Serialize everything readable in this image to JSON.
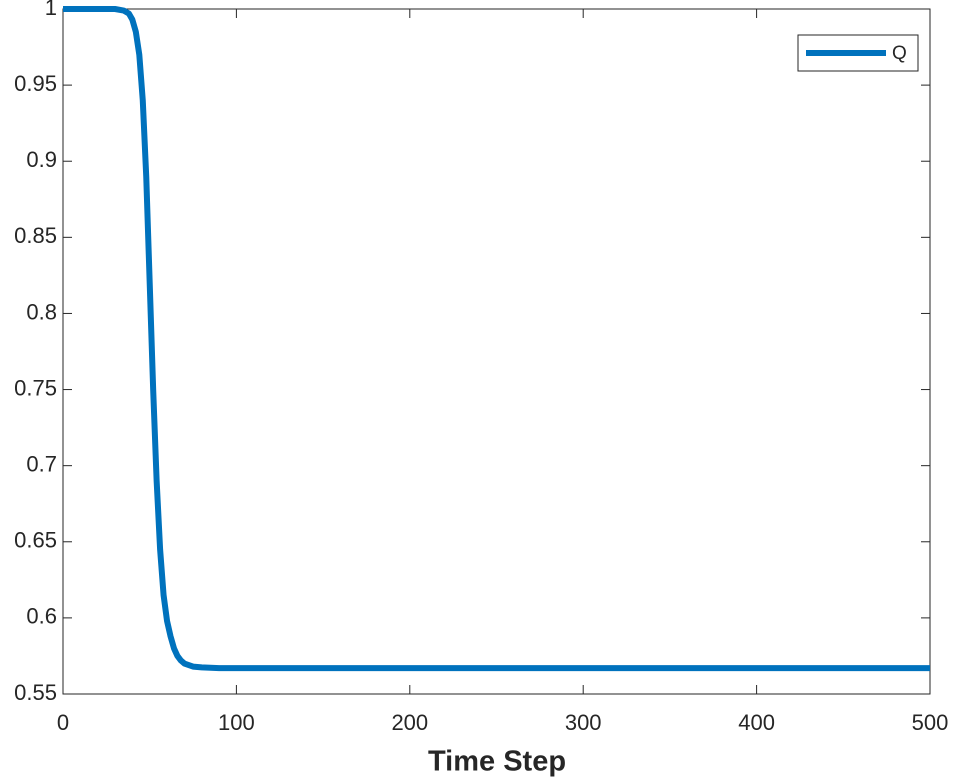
{
  "chart_data": {
    "type": "line",
    "xlabel": "Time Step",
    "x": [
      0,
      10,
      20,
      30,
      35,
      38,
      40,
      42,
      44,
      46,
      48,
      50,
      52,
      54,
      56,
      58,
      60,
      62,
      64,
      66,
      68,
      70,
      75,
      80,
      90,
      100,
      200,
      300,
      400,
      500
    ],
    "series": [
      {
        "name": "Q",
        "color": "#0072bd",
        "values": [
          1,
          1,
          1,
          1,
          0.999,
          0.997,
          0.993,
          0.985,
          0.97,
          0.94,
          0.89,
          0.82,
          0.75,
          0.69,
          0.645,
          0.615,
          0.598,
          0.588,
          0.58,
          0.575,
          0.572,
          0.57,
          0.568,
          0.5675,
          0.567,
          0.567,
          0.567,
          0.567,
          0.567,
          0.567
        ]
      }
    ],
    "xlim": [
      0,
      500
    ],
    "xticks": [
      0,
      100,
      200,
      300,
      400,
      500
    ],
    "ylim": [
      0.55,
      1
    ],
    "yticks": [
      0.55,
      0.6,
      0.65,
      0.7,
      0.75,
      0.8,
      0.85,
      0.9,
      0.95,
      1
    ],
    "grid": false,
    "legend": "top-right"
  }
}
